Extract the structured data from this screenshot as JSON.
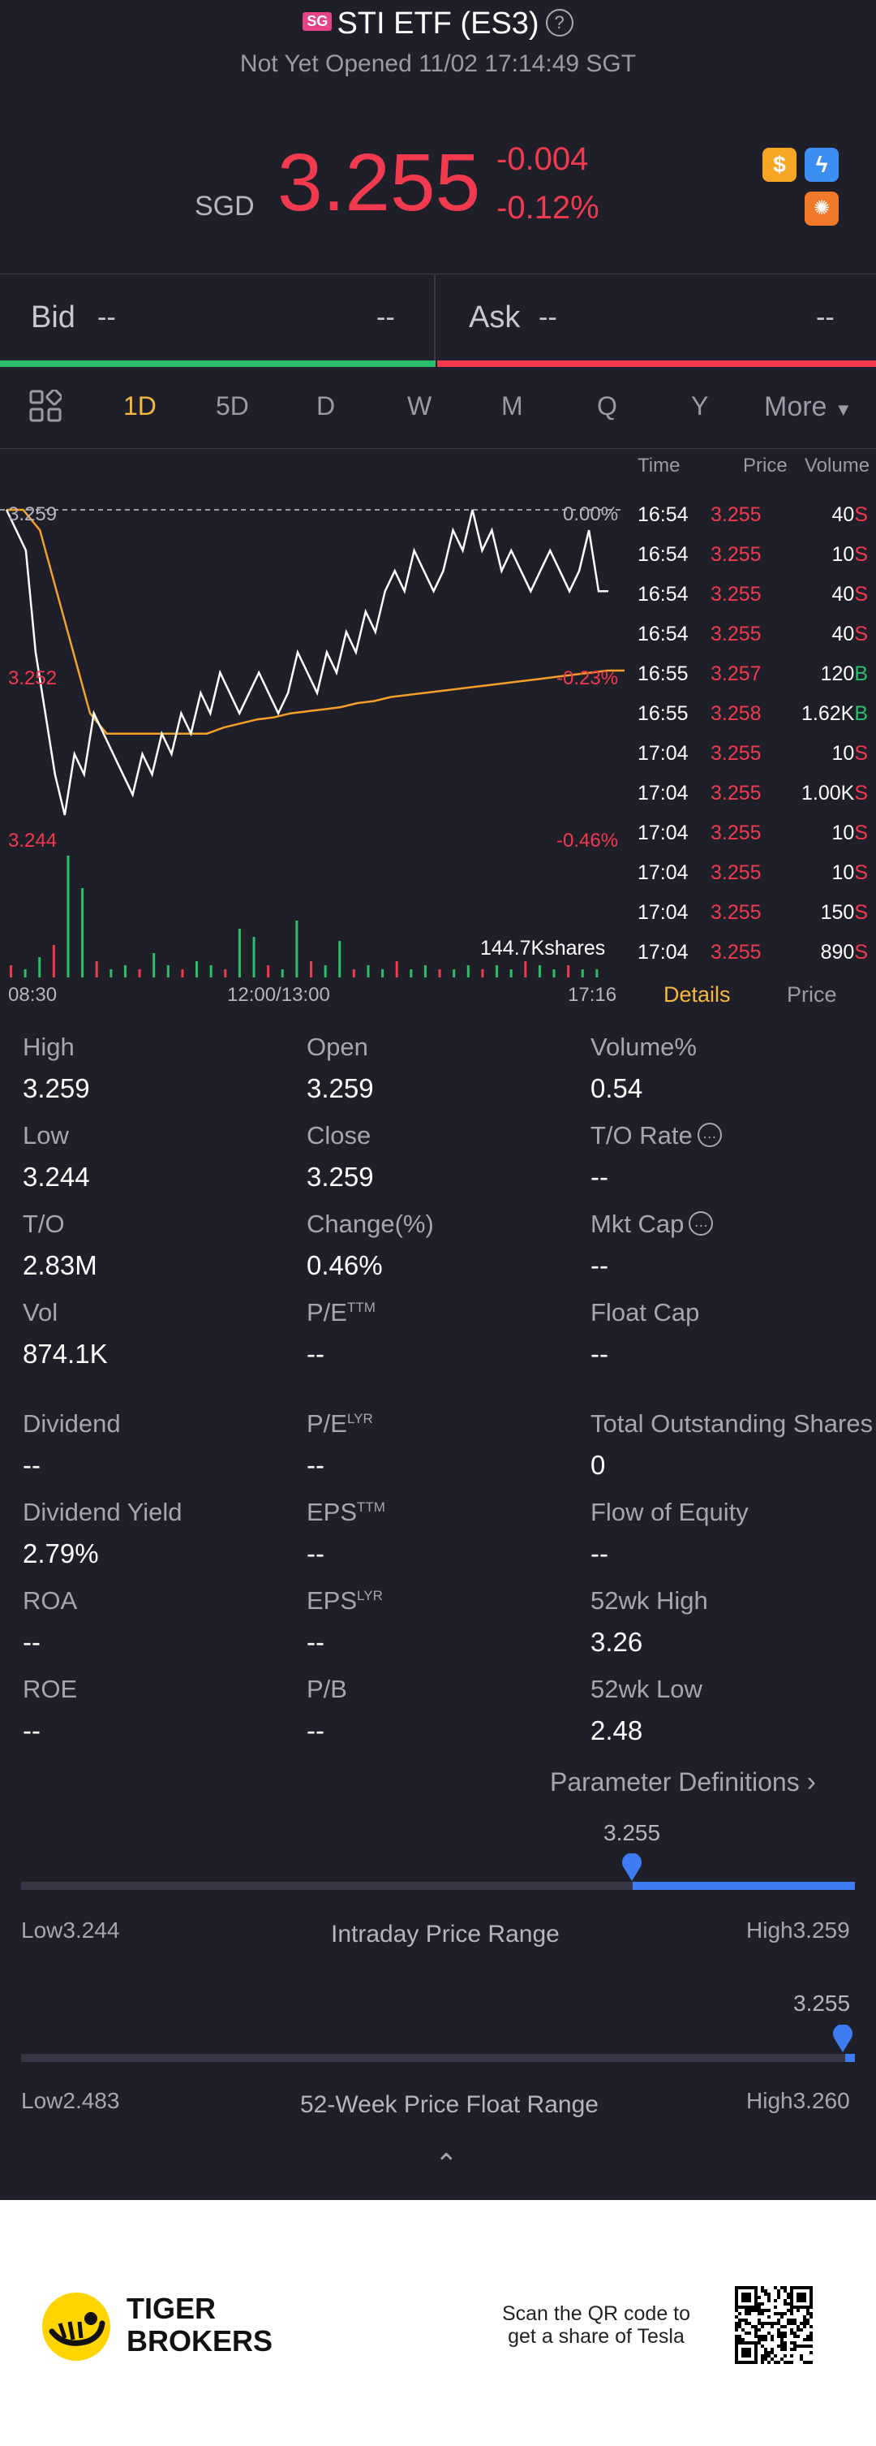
{
  "header": {
    "market_flag": "SG",
    "title": "STI ETF (ES3)",
    "status": "Not Yet Opened 11/02 17:14:49 SGT"
  },
  "quote": {
    "currency": "SGD",
    "price": "3.255",
    "change": "-0.004",
    "change_pct": "-0.12%",
    "accent_down": "#f23a4e",
    "accent_up": "#2cbf6a"
  },
  "bid_ask": {
    "bid_label": "Bid",
    "bid_price": "--",
    "bid_size": "--",
    "ask_label": "Ask",
    "ask_price": "--",
    "ask_size": "--"
  },
  "tabs": [
    "1D",
    "5D",
    "D",
    "W",
    "M",
    "Q",
    "Y"
  ],
  "more_label": "More",
  "active_tab": "1D",
  "chart_data": {
    "type": "line",
    "y_ticks_left": [
      "3.259",
      "3.252",
      "3.244"
    ],
    "y_ticks_right": [
      "0.00%",
      "-0.23%",
      "-0.46%"
    ],
    "x_ticks": [
      "08:30",
      "12:00/13:00",
      "17:16"
    ],
    "volume_label": "144.7Kshares",
    "ylim": [
      3.244,
      3.259
    ],
    "series": [
      {
        "values": [
          3.259,
          3.258,
          3.257,
          3.252,
          3.249,
          3.246,
          3.244,
          3.247,
          3.246,
          3.249,
          3.248,
          3.247,
          3.246,
          3.245,
          3.247,
          3.246,
          3.248,
          3.247,
          3.249,
          3.248,
          3.25,
          3.249,
          3.251,
          3.25,
          3.249,
          3.25,
          3.251,
          3.25,
          3.249,
          3.25,
          3.252,
          3.251,
          3.25,
          3.252,
          3.251,
          3.253,
          3.252,
          3.254,
          3.253,
          3.255,
          3.256,
          3.255,
          3.257,
          3.256,
          3.255,
          3.256,
          3.258,
          3.257,
          3.259,
          3.257,
          3.258,
          3.256,
          3.257,
          3.256,
          3.255,
          3.256,
          3.257,
          3.256,
          3.255,
          3.256,
          3.258,
          3.255,
          3.255
        ]
      },
      {
        "values": [
          3.259,
          3.259,
          3.258,
          3.255,
          3.252,
          3.249,
          3.248,
          3.248,
          3.248,
          3.248,
          3.248,
          3.248,
          3.248,
          3.2483,
          3.2485,
          3.2487,
          3.2488,
          3.249,
          3.2491,
          3.2492,
          3.2493,
          3.2495,
          3.2496,
          3.2498,
          3.2499,
          3.25,
          3.2501,
          3.2502,
          3.2503,
          3.2504,
          3.2505,
          3.2506,
          3.2507,
          3.2508,
          3.2509,
          3.251,
          3.2511,
          3.2511
        ]
      }
    ],
    "volume_bars": [
      3,
      2,
      5,
      8,
      30,
      22,
      4,
      2,
      3,
      2,
      6,
      3,
      2,
      4,
      3,
      2,
      12,
      10,
      3,
      2,
      14,
      4,
      3,
      9,
      2,
      3,
      2,
      4,
      2,
      3,
      2,
      2,
      3,
      2,
      3,
      2,
      4,
      3,
      2,
      3,
      2,
      2
    ]
  },
  "ticks_table": {
    "headers": [
      "Time",
      "Price",
      "Volume"
    ],
    "rows": [
      {
        "time": "16:54",
        "price": "3.255",
        "vol": "40",
        "side": "S"
      },
      {
        "time": "16:54",
        "price": "3.255",
        "vol": "10",
        "side": "S"
      },
      {
        "time": "16:54",
        "price": "3.255",
        "vol": "40",
        "side": "S"
      },
      {
        "time": "16:54",
        "price": "3.255",
        "vol": "40",
        "side": "S"
      },
      {
        "time": "16:55",
        "price": "3.257",
        "vol": "120",
        "side": "B"
      },
      {
        "time": "16:55",
        "price": "3.258",
        "vol": "1.62K",
        "side": "B"
      },
      {
        "time": "17:04",
        "price": "3.255",
        "vol": "10",
        "side": "S"
      },
      {
        "time": "17:04",
        "price": "3.255",
        "vol": "1.00K",
        "side": "S"
      },
      {
        "time": "17:04",
        "price": "3.255",
        "vol": "10",
        "side": "S"
      },
      {
        "time": "17:04",
        "price": "3.255",
        "vol": "10",
        "side": "S"
      },
      {
        "time": "17:04",
        "price": "3.255",
        "vol": "150",
        "side": "S"
      },
      {
        "time": "17:04",
        "price": "3.255",
        "vol": "890",
        "side": "S"
      }
    ],
    "tab_details": "Details",
    "tab_price": "Price"
  },
  "stats": [
    {
      "label": "High",
      "value": "3.259"
    },
    {
      "label": "Open",
      "value": "3.259"
    },
    {
      "label": "Volume%",
      "value": "0.54"
    },
    {
      "label": "Low",
      "value": "3.244"
    },
    {
      "label": "Close",
      "value": "3.259"
    },
    {
      "label": "T/O Rate",
      "value": "--"
    },
    {
      "label": "T/O",
      "value": "2.83M"
    },
    {
      "label": "Change(%)",
      "value": "0.46%"
    },
    {
      "label": "Mkt Cap",
      "value": "--"
    },
    {
      "label": "Vol",
      "value": "874.1K"
    },
    {
      "label": "P/E",
      "sup": "TTM",
      "value": "--"
    },
    {
      "label": "Float Cap",
      "value": "--"
    },
    {
      "label": "Dividend",
      "value": "--"
    },
    {
      "label": "P/E",
      "sup": "LYR",
      "value": "--"
    },
    {
      "label": "Total Outstanding Shares",
      "value": "0"
    },
    {
      "label": "Dividend Yield",
      "value": "2.79%"
    },
    {
      "label": "EPS",
      "sup": "TTM",
      "value": "--"
    },
    {
      "label": "Flow of Equity",
      "value": "--"
    },
    {
      "label": "ROA",
      "value": "--"
    },
    {
      "label": "EPS",
      "sup": "LYR",
      "value": "--"
    },
    {
      "label": "52wk High",
      "value": "3.26"
    },
    {
      "label": "ROE",
      "value": "--"
    },
    {
      "label": "P/B",
      "value": "--"
    },
    {
      "label": "52wk Low",
      "value": "2.48"
    }
  ],
  "param_defs": "Parameter Definitions",
  "intraday_range": {
    "current": "3.255",
    "low_label": "Low3.244",
    "high_label": "High3.259",
    "title": "Intraday Price Range",
    "level": 0.733
  },
  "week52_range": {
    "current": "3.255",
    "low_label": "Low2.483",
    "high_label": "High3.260",
    "title": "52-Week Price Float Range",
    "level": 0.994
  },
  "footer": {
    "brand_line1": "TIGER",
    "brand_line2": "BROKERS",
    "scan_line1": "Scan the QR code to",
    "scan_line2": "get a share of Tesla"
  }
}
